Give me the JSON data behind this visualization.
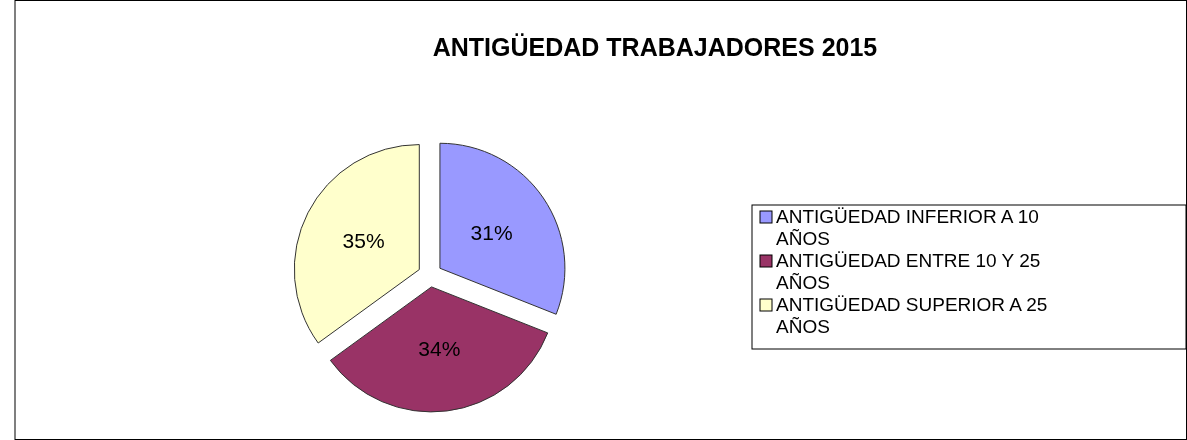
{
  "chart_data": {
    "type": "pie",
    "title": "ANTIGÜEDAD TRABAJADORES 2015",
    "categories": [
      "ANTIGÜEDAD INFERIOR A 10 AÑOS",
      "ANTIGÜEDAD ENTRE 10 Y 25 AÑOS",
      "ANTIGÜEDAD SUPERIOR A 25 AÑOS"
    ],
    "values": [
      31,
      34,
      35
    ],
    "value_labels": [
      "31%",
      "34%",
      "35%"
    ],
    "colors": [
      "#9999ff",
      "#993366",
      "#ffffcc"
    ],
    "legend": "right"
  }
}
